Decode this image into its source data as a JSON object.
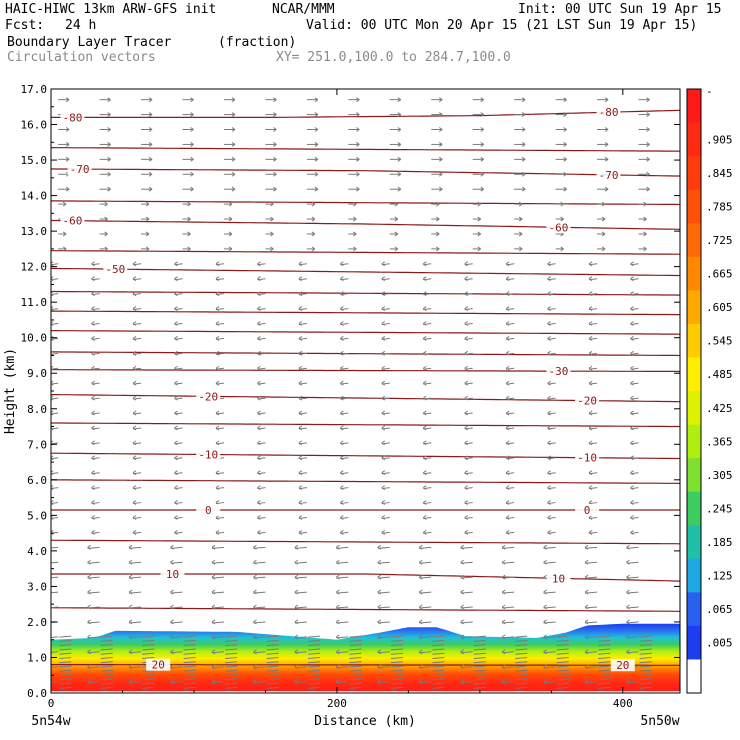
{
  "header": {
    "model": "HAIC-HIWC 13km ARW-GFS init",
    "org": "NCAR/MMM",
    "init": "Init: 00 UTC Sun 19 Apr 15",
    "fcst_label": "Fcst:",
    "fcst_value": "24 h",
    "valid": "Valid: 00 UTC Mon 20 Apr 15 (21 LST Sun 19 Apr 15)",
    "field": "Boundary Layer Tracer",
    "units": "(fraction)",
    "vectors": "Circulation vectors",
    "xsect": "XY= 251.0,100.0 to 284.7,100.0"
  },
  "colors": {
    "contour": "#8b1a1a",
    "vector": "#7a7a7a",
    "gray_text": "#8a8a8a"
  },
  "chart_data": {
    "type": "heatmap",
    "title": "Boundary Layer Tracer",
    "xlabel": "Distance (km)",
    "ylabel": "Height (km)",
    "xlim": [
      0,
      440
    ],
    "ylim": [
      0,
      17
    ],
    "x_ticks": [
      0,
      200,
      400
    ],
    "y_ticks": [
      "0.0",
      "1.0",
      "2.0",
      "3.0",
      "4.0",
      "5.0",
      "6.0",
      "7.0",
      "8.0",
      "9.0",
      "10.0",
      "11.0",
      "12.0",
      "13.0",
      "14.0",
      "15.0",
      "16.0",
      "17.0"
    ],
    "x_endpoints": {
      "left": "5n54w",
      "right": "5n50w"
    },
    "colorbar": {
      "labels": [
        "-",
        ".905",
        ".845",
        ".785",
        ".725",
        ".665",
        ".605",
        ".545",
        ".485",
        ".425",
        ".365",
        ".305",
        ".245",
        ".185",
        ".125",
        ".065",
        ".005"
      ],
      "colors": [
        "#ff1a1a",
        "#ff2a12",
        "#ff3c0c",
        "#ff5008",
        "#ff6a04",
        "#ff8800",
        "#ffa800",
        "#ffcc00",
        "#ffee00",
        "#ddf200",
        "#b0ee10",
        "#7ee030",
        "#3ccc60",
        "#20c0a8",
        "#1ea8e0",
        "#2a60f0",
        "#1e3cf0",
        "#ffffff"
      ]
    },
    "boundary_layer_top_km": [
      [
        0,
        1.5
      ],
      [
        30,
        1.55
      ],
      [
        45,
        1.75
      ],
      [
        130,
        1.72
      ],
      [
        200,
        1.5
      ],
      [
        230,
        1.7
      ],
      [
        250,
        1.85
      ],
      [
        270,
        1.85
      ],
      [
        290,
        1.6
      ],
      [
        340,
        1.55
      ],
      [
        360,
        1.7
      ],
      [
        375,
        1.9
      ],
      [
        400,
        1.95
      ],
      [
        440,
        1.95
      ]
    ],
    "isotherms": [
      {
        "label": "-80",
        "values_km": [
          [
            0,
            16.2
          ],
          [
            150,
            16.2
          ],
          [
            300,
            16.25
          ],
          [
            440,
            16.4
          ]
        ],
        "label_x": [
          15,
          390
        ]
      },
      {
        "label": "-70",
        "values_km": [
          [
            0,
            14.75
          ],
          [
            220,
            14.7
          ],
          [
            440,
            14.55
          ]
        ],
        "label_x": [
          20,
          390
        ]
      },
      {
        "label": "-60",
        "values_km": [
          [
            0,
            13.3
          ],
          [
            220,
            13.2
          ],
          [
            440,
            13.05
          ]
        ],
        "label_x": [
          15,
          355
        ]
      },
      {
        "label": "-50",
        "values_km": [
          [
            0,
            11.95
          ],
          [
            440,
            11.75
          ]
        ],
        "label_x": [
          45
        ]
      },
      {
        "label": "-30",
        "values_km": [
          [
            0,
            9.1
          ],
          [
            440,
            9.05
          ]
        ],
        "label_x": [
          355
        ]
      },
      {
        "label": "-20",
        "values_km": [
          [
            0,
            8.4
          ],
          [
            440,
            8.2
          ]
        ],
        "label_x": [
          110,
          375
        ]
      },
      {
        "label": "-10",
        "values_km": [
          [
            0,
            6.75
          ],
          [
            440,
            6.6
          ]
        ],
        "label_x": [
          110,
          375
        ]
      },
      {
        "label": "0",
        "values_km": [
          [
            0,
            5.15
          ],
          [
            440,
            5.15
          ]
        ],
        "label_x": [
          110,
          375
        ]
      },
      {
        "label": "10",
        "values_km": [
          [
            0,
            3.35
          ],
          [
            220,
            3.35
          ],
          [
            440,
            3.15
          ]
        ],
        "label_x": [
          85,
          355
        ]
      },
      {
        "label": "20",
        "values_km": [
          [
            0,
            0.8
          ],
          [
            440,
            0.78
          ]
        ],
        "label_x": [
          75,
          400
        ]
      }
    ],
    "unlabeled_isotherms_km": [
      15.35,
      13.85,
      12.45,
      11.3,
      10.75,
      10.2,
      9.6,
      7.6,
      6.0,
      4.3,
      2.4
    ]
  }
}
